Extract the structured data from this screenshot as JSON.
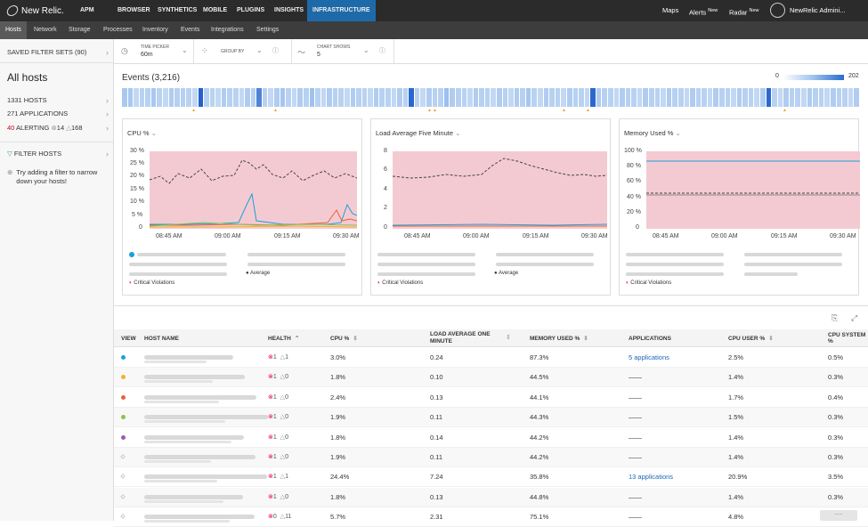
{
  "topnav": {
    "brand": "New Relic.",
    "items": [
      "APM",
      "BROWSER",
      "SYNTHETICS",
      "MOBILE",
      "PLUGINS",
      "INSIGHTS",
      "INFRASTRUCTURE"
    ],
    "right": {
      "maps": "Maps",
      "alerts": "Alerts",
      "alerts_badge": "New",
      "radar": "Radar",
      "radar_badge": "New",
      "account": "NewRelic Admini..."
    }
  },
  "subnav": {
    "items": [
      "Hosts",
      "Network",
      "Storage",
      "Processes",
      "Inventory",
      "Events",
      "Integrations",
      "Settings"
    ]
  },
  "sidebar": {
    "saved_filter_sets": "SAVED FILTER SETS (90)",
    "all_hosts": "All hosts",
    "hosts": "1331 HOSTS",
    "applications": "271 APPLICATIONS",
    "alerting_count": "40",
    "alerting_label": "ALERTING",
    "critical_count": "14",
    "warning_count": "168",
    "filter_hosts": "FILTER HOSTS",
    "hint": "Try adding a filter to narrow down your hosts!"
  },
  "toolbar": {
    "time_picker_label": "TIME PICKER",
    "time_picker_value": "60m",
    "group_by_label": "GROUP BY",
    "chart_shows_label": "CHART SHOWS",
    "chart_shows_value": "5"
  },
  "events": {
    "title": "Events (3,216)",
    "scale_min": "0",
    "scale_max": "202",
    "colors": [
      "#a9c8ef",
      "#a9c8ef",
      "#c2d8f3",
      "#b9d2f1",
      "#b7d1f1",
      "#a9c8ef",
      "#b9d2f1",
      "#c2d8f3",
      "#b0ccf0",
      "#b6d0f1",
      "#b6d0f1",
      "#b9d2f1",
      "#c2d8f3",
      "#2461c8",
      "#b7d1f1",
      "#b9d2f1",
      "#c2d8f3",
      "#b0ccf0",
      "#b7d1f1",
      "#b9d2f1",
      "#c2d8f3",
      "#b0ccf0",
      "#b7d1f1",
      "#4f83d6",
      "#b9d2f1",
      "#c2d8f3",
      "#b0ccf0",
      "#a6c6ef",
      "#b9d2f1",
      "#c2d8f3",
      "#b0ccf0",
      "#b7d1f1",
      "#a0c2ee",
      "#b9d2f1",
      "#c2d8f3",
      "#b0ccf0",
      "#b7d1f1",
      "#b9d2f1",
      "#c2d8f3",
      "#b0ccf0",
      "#b7d1f1",
      "#b9d2f1",
      "#c2d8f3",
      "#b0ccf0",
      "#b7d1f1",
      "#b9d2f1",
      "#c2d8f3",
      "#b0ccf0",
      "#b7d1f1",
      "#2a68cd",
      "#b9d2f1",
      "#c2d8f3",
      "#b0ccf0",
      "#b7d1f1",
      "#b9d2f1",
      "#9bbfee",
      "#b0ccf0",
      "#b7d1f1",
      "#b9d2f1",
      "#c2d8f3",
      "#b0ccf0",
      "#b7d1f1",
      "#b9d2f1",
      "#c2d8f3",
      "#b0ccf0",
      "#b7d1f1",
      "#c2d8f3",
      "#b0ccf0",
      "#b7d1f1",
      "#a8c7ef",
      "#b9d2f1",
      "#c2d8f3",
      "#b0ccf0",
      "#b7d1f1",
      "#b9d2f1",
      "#c2d8f3",
      "#b0ccf0",
      "#b7d1f1",
      "#b9d2f1",
      "#c2d8f3",
      "#2a68cd",
      "#b0ccf0",
      "#b7d1f1",
      "#b9d2f1",
      "#c2d8f3",
      "#b0ccf0",
      "#b7d1f1",
      "#b9d2f1",
      "#c2d8f3",
      "#b0ccf0",
      "#b7d1f1",
      "#b9d2f1",
      "#c2d8f3",
      "#b0ccf0",
      "#b7d1f1",
      "#b9d2f1",
      "#c2d8f3",
      "#b0ccf0",
      "#b7d1f1",
      "#b9d2f1",
      "#c2d8f3",
      "#b0ccf0",
      "#b7d1f1",
      "#b9d2f1",
      "#c2d8f3",
      "#b0ccf0",
      "#b7d1f1",
      "#b9d2f1",
      "#c2d8f3",
      "#b0ccf0",
      "#2a68cd",
      "#b9d2f1",
      "#c2d8f3",
      "#b0ccf0",
      "#b7d1f1",
      "#b9d2f1",
      "#c2d8f3",
      "#b0ccf0",
      "#b7d1f1",
      "#b9d2f1",
      "#c2d8f3",
      "#b0ccf0",
      "#b7d1f1",
      "#b9d2f1",
      "#c2d8f3",
      "#b0ccf0"
    ]
  },
  "charts": [
    {
      "title": "CPU %",
      "yticks": [
        "30 %",
        "25 %",
        "20 %",
        "15 %",
        "10 %",
        "5 %",
        "0"
      ],
      "xticks": [
        "08:45 AM",
        "09:00 AM",
        "09:15 AM",
        "09:30 AM"
      ],
      "legend_average": "Average",
      "legend_critical": "Critical Violations"
    },
    {
      "title": "Load Average Five Minute",
      "yticks": [
        "8",
        "6",
        "4",
        "2",
        "0"
      ],
      "xticks": [
        "08:45 AM",
        "09:00 AM",
        "09:15 AM",
        "09:30 AM"
      ],
      "legend_average": "Average",
      "legend_critical": "Critical Violations"
    },
    {
      "title": "Memory Used %",
      "yticks": [
        "100 %",
        "80 %",
        "60 %",
        "40 %",
        "20 %",
        "0"
      ],
      "xticks": [
        "08:45 AM",
        "09:00 AM",
        "09:15 AM",
        "09:30 AM"
      ],
      "legend_critical": "Critical Violations"
    }
  ],
  "table": {
    "headers": [
      "VIEW",
      "HOST NAME",
      "HEALTH",
      "CPU %",
      "LOAD AVERAGE ONE MINUTE",
      "MEMORY USED %",
      "APPLICATIONS",
      "CPU USER %",
      "CPU SYSTEM %"
    ],
    "rows": [
      {
        "dot": "#1aa0d8",
        "crit": "1",
        "warn": "1",
        "cpu": "3.0%",
        "load": "0.24",
        "mem": "87.3%",
        "apps": "5 applications",
        "cpu_user": "2.5%",
        "cpu_sys": "0.5%"
      },
      {
        "dot": "#f0b429",
        "crit": "1",
        "warn": "0",
        "cpu": "1.8%",
        "load": "0.10",
        "mem": "44.5%",
        "apps": "——",
        "cpu_user": "1.4%",
        "cpu_sys": "0.3%"
      },
      {
        "dot": "#e8643c",
        "crit": "1",
        "warn": "0",
        "cpu": "2.4%",
        "load": "0.13",
        "mem": "44.1%",
        "apps": "——",
        "cpu_user": "1.7%",
        "cpu_sys": "0.4%"
      },
      {
        "dot": "#8bc34a",
        "crit": "1",
        "warn": "0",
        "cpu": "1.9%",
        "load": "0.11",
        "mem": "44.3%",
        "apps": "——",
        "cpu_user": "1.5%",
        "cpu_sys": "0.3%"
      },
      {
        "dot": "#9b59b6",
        "crit": "1",
        "warn": "0",
        "cpu": "1.8%",
        "load": "0.14",
        "mem": "44.2%",
        "apps": "——",
        "cpu_user": "1.4%",
        "cpu_sys": "0.3%"
      },
      {
        "dot": "",
        "crit": "1",
        "warn": "0",
        "cpu": "1.9%",
        "load": "0.11",
        "mem": "44.2%",
        "apps": "——",
        "cpu_user": "1.4%",
        "cpu_sys": "0.3%"
      },
      {
        "dot": "",
        "crit": "1",
        "warn": "1",
        "cpu": "24.4%",
        "load": "7.24",
        "mem": "35.8%",
        "apps": "13 applications",
        "cpu_user": "20.9%",
        "cpu_sys": "3.5%"
      },
      {
        "dot": "",
        "crit": "1",
        "warn": "0",
        "cpu": "1.8%",
        "load": "0.13",
        "mem": "44.8%",
        "apps": "——",
        "cpu_user": "1.4%",
        "cpu_sys": "0.3%"
      },
      {
        "dot": "",
        "crit": "0",
        "warn": "11",
        "cpu": "5.7%",
        "load": "2.31",
        "mem": "75.1%",
        "apps": "——",
        "cpu_user": "4.8%",
        "cpu_sys": ""
      }
    ]
  }
}
